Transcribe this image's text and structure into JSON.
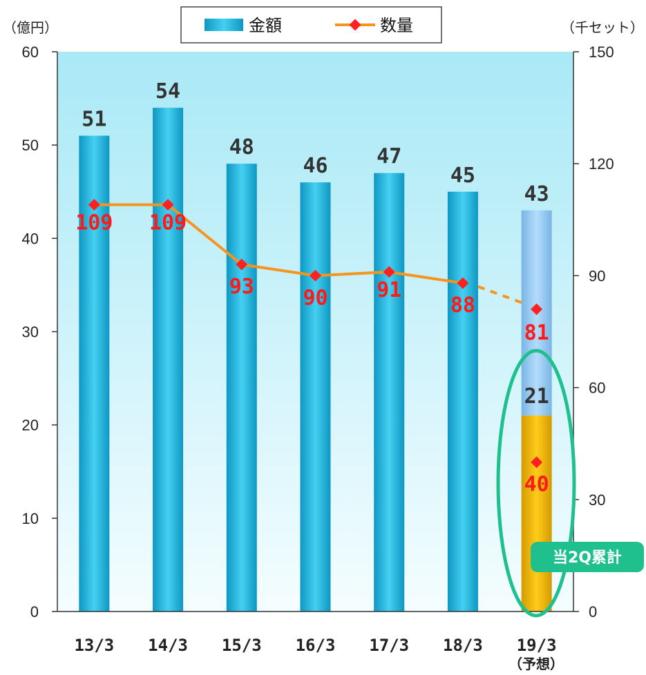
{
  "chart_data": {
    "type": "bar",
    "categories": [
      "13/3",
      "14/3",
      "15/3",
      "16/3",
      "17/3",
      "18/3",
      "19/3"
    ],
    "category_note": "（予想）",
    "left_axis": {
      "unit_label": "（億円）",
      "ticks": [
        "0",
        "10",
        "20",
        "30",
        "40",
        "50",
        "60"
      ],
      "ylim": [
        0,
        60
      ]
    },
    "right_axis": {
      "unit_label": "（千セット）",
      "ticks": [
        "0",
        "30",
        "60",
        "90",
        "120",
        "150"
      ],
      "ylim": [
        0,
        150
      ]
    },
    "series": [
      {
        "name": "金額",
        "type": "bar",
        "axis": "left",
        "values": [
          51,
          54,
          48,
          46,
          47,
          45,
          43
        ],
        "labels": [
          "51",
          "54",
          "48",
          "46",
          "47",
          "45",
          "43"
        ],
        "color": "#19b4d8"
      },
      {
        "name": "数量",
        "type": "line",
        "axis": "right",
        "values": [
          109,
          109,
          93,
          90,
          91,
          88,
          81
        ],
        "labels": [
          "109",
          "109",
          "93",
          "90",
          "91",
          "88",
          "81"
        ],
        "color": "#f7941d",
        "marker_color": "#ff2020",
        "last_segment": "dashed"
      }
    ],
    "forecast_breakdown": {
      "category": "19/3",
      "amount_h1": 21,
      "amount_h1_label": "21",
      "quantity_h1": 40,
      "quantity_h1_label": "40",
      "h1_color": "#ffc000",
      "remainder_color": "#9ccbf0",
      "callout": "当2Q累計",
      "callout_color": "#1fc08e"
    },
    "legend": {
      "position": "top",
      "items": [
        "金額",
        "数量"
      ]
    },
    "plot_background": "#dff9fd",
    "grid": false
  }
}
